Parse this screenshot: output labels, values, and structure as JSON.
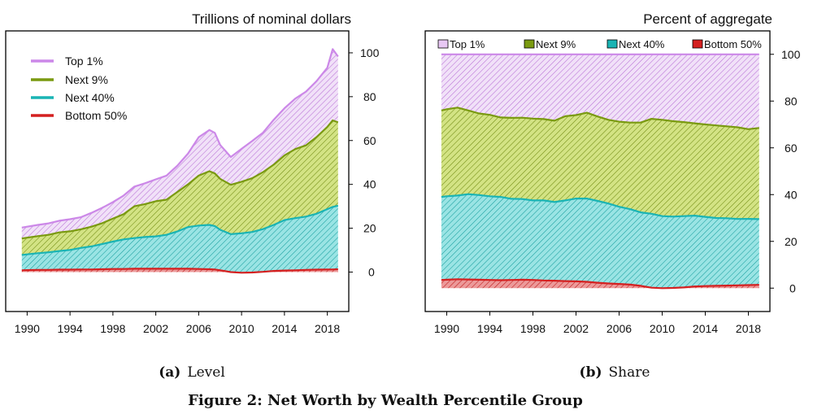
{
  "figure_caption": "Figure 2: Net Worth by Wealth Percentile Group",
  "colors": {
    "top1": "#cc88e8",
    "next9": "#7a9a10",
    "next40": "#1ab4b4",
    "bottom50": "#d42020",
    "top1_fill": "#f1e1f8",
    "next9_fill": "#cfe07a",
    "next40_fill": "#92e2e2",
    "bottom50_fill": "#e88a8a"
  },
  "chart_data": [
    {
      "type": "area",
      "stacked": true,
      "panel_label": "(a)",
      "panel_caption": "Level",
      "title": "Trillions of nominal dollars",
      "xlabel": "",
      "ylabel": "",
      "xlim": [
        1988,
        2020
      ],
      "ylim": [
        -18,
        110
      ],
      "xticks": [
        "1990",
        "1994",
        "1998",
        "2002",
        "2006",
        "2010",
        "2014",
        "2018"
      ],
      "yticks": [
        "0",
        "20",
        "40",
        "60",
        "80",
        "100"
      ],
      "legend": {
        "placement": "top-left",
        "entries": [
          "Top 1%",
          "Next 9%",
          "Next 40%",
          "Bottom 50%"
        ]
      },
      "grid": false,
      "x": [
        1989.5,
        1990,
        1991,
        1992,
        1993,
        1994,
        1995,
        1996,
        1997,
        1998,
        1999,
        2000,
        2001,
        2002,
        2003,
        2004,
        2005,
        2006,
        2007,
        2007.5,
        2008,
        2009,
        2010,
        2011,
        2012,
        2013,
        2014,
        2015,
        2016,
        2017,
        2018,
        2018.5,
        2019
      ],
      "series": [
        {
          "name": "Bottom 50%",
          "values": [
            0.8,
            0.9,
            1.0,
            1.0,
            1.1,
            1.1,
            1.2,
            1.2,
            1.3,
            1.4,
            1.4,
            1.5,
            1.5,
            1.5,
            1.5,
            1.5,
            1.5,
            1.4,
            1.3,
            1.2,
            0.8,
            0.0,
            -0.3,
            -0.2,
            0.1,
            0.5,
            0.7,
            0.8,
            1.0,
            1.1,
            1.2,
            1.2,
            1.3
          ]
        },
        {
          "name": "Next 40%",
          "values": [
            7.0,
            7.2,
            7.6,
            8.0,
            8.5,
            9.0,
            9.8,
            10.5,
            11.5,
            12.5,
            13.5,
            14.0,
            14.5,
            14.8,
            15.5,
            17.0,
            19.0,
            19.8,
            20.2,
            19.8,
            18.5,
            17.3,
            18.0,
            18.5,
            19.5,
            21.0,
            23.0,
            23.8,
            24.3,
            25.5,
            27.5,
            28.5,
            29.0
          ]
        },
        {
          "name": "Next 9%",
          "values": [
            7.5,
            7.6,
            7.8,
            8.0,
            8.5,
            8.5,
            8.5,
            9.0,
            9.5,
            10.5,
            11.5,
            14.5,
            15.0,
            16.0,
            16.0,
            18.0,
            19.5,
            22.8,
            24.5,
            24.0,
            23.2,
            22.5,
            23.5,
            24.5,
            26.0,
            27.5,
            29.5,
            31.5,
            32.5,
            35.0,
            37.5,
            39.5,
            38.0
          ]
        },
        {
          "name": "Top 1%",
          "values": [
            5.0,
            5.0,
            5.1,
            5.2,
            5.3,
            5.5,
            5.5,
            6.3,
            7.0,
            7.5,
            8.5,
            9.0,
            9.5,
            10.0,
            11.0,
            12.0,
            14.0,
            17.5,
            18.8,
            18.5,
            15.5,
            12.7,
            15.0,
            17.0,
            18.0,
            20.5,
            21.5,
            23.0,
            24.5,
            25.5,
            27.0,
            32.5,
            30.0
          ]
        }
      ]
    },
    {
      "type": "area",
      "stacked": true,
      "panel_label": "(b)",
      "panel_caption": "Share",
      "title": "Percent of aggregate",
      "xlabel": "",
      "ylabel": "",
      "xlim": [
        1988,
        2020
      ],
      "ylim": [
        -10,
        110
      ],
      "xticks": [
        "1990",
        "1994",
        "1998",
        "2002",
        "2006",
        "2010",
        "2014",
        "2018"
      ],
      "yticks": [
        "0",
        "20",
        "40",
        "60",
        "80",
        "100"
      ],
      "legend": {
        "placement": "top",
        "entries": [
          "Top 1%",
          "Next 9%",
          "Next 40%",
          "Bottom 50%"
        ]
      },
      "grid": false,
      "x": [
        1989.5,
        1990,
        1991,
        1992,
        1993,
        1994,
        1995,
        1996,
        1997,
        1998,
        1999,
        2000,
        2001,
        2002,
        2003,
        2004,
        2005,
        2006,
        2007,
        2008,
        2009,
        2010,
        2011,
        2012,
        2013,
        2014,
        2015,
        2016,
        2017,
        2018,
        2019
      ],
      "series": [
        {
          "name": "Bottom 50%",
          "values": [
            3.5,
            3.6,
            3.8,
            3.7,
            3.6,
            3.5,
            3.4,
            3.5,
            3.6,
            3.5,
            3.3,
            3.2,
            3.0,
            2.9,
            2.7,
            2.3,
            2.0,
            1.8,
            1.5,
            1.0,
            0.2,
            0.0,
            0.1,
            0.3,
            0.7,
            0.9,
            1.0,
            1.1,
            1.2,
            1.3,
            1.4
          ]
        },
        {
          "name": "Next 40%",
          "values": [
            35.5,
            35.7,
            35.8,
            36.5,
            36.2,
            35.8,
            35.6,
            34.7,
            34.5,
            34.0,
            34.2,
            33.6,
            34.5,
            35.4,
            35.6,
            35.0,
            34.2,
            33.0,
            32.3,
            31.4,
            31.6,
            30.8,
            30.5,
            30.5,
            30.3,
            29.6,
            29.0,
            28.8,
            28.4,
            28.3,
            28.1
          ]
        },
        {
          "name": "Next 9%",
          "values": [
            37.0,
            37.2,
            37.6,
            35.8,
            34.9,
            34.8,
            34.0,
            34.6,
            34.8,
            35.0,
            34.8,
            34.8,
            36.0,
            35.7,
            36.7,
            36.1,
            35.8,
            36.4,
            37.0,
            38.4,
            40.6,
            41.2,
            40.8,
            40.2,
            39.5,
            39.5,
            39.6,
            39.3,
            39.2,
            38.4,
            39.0
          ]
        },
        {
          "name": "Top 1%",
          "values": [
            24.0,
            23.5,
            22.8,
            24.0,
            25.3,
            25.9,
            27.0,
            27.2,
            27.1,
            27.5,
            27.7,
            28.4,
            26.5,
            26.0,
            25.0,
            26.6,
            28.0,
            28.8,
            29.2,
            29.2,
            27.6,
            28.0,
            28.6,
            29.0,
            29.5,
            30.0,
            30.4,
            30.8,
            31.2,
            32.0,
            31.5
          ]
        }
      ]
    }
  ]
}
